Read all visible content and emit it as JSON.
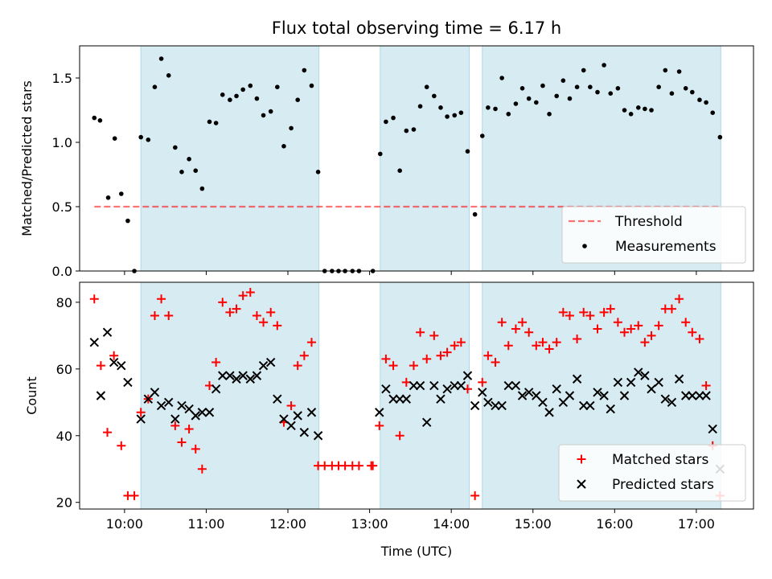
{
  "title": "Flux total observing time = 6.17 h",
  "colors": {
    "shade": "#add8e6",
    "threshold": "#ff0000",
    "measurements": "#000000",
    "matched": "#ff0000",
    "predicted": "#000000"
  },
  "chart_data": [
    {
      "type": "scatter",
      "ylabel": "Matched/Predicted stars",
      "xlim": [
        9.45,
        17.7
      ],
      "ylim": [
        0,
        1.75
      ],
      "yticks": [
        0,
        0.5,
        1,
        1.5
      ],
      "ytick_labels": [
        "0.0",
        "0.5",
        "1.0",
        "1.5"
      ],
      "shaded_intervals": [
        [
          10.2,
          12.38
        ],
        [
          13.13,
          14.22
        ],
        [
          14.38,
          17.3
        ]
      ],
      "threshold": {
        "name": "Threshold",
        "value": 0.5,
        "x_start": 9.63,
        "x_end": 17.3,
        "style": "dashed"
      },
      "legend": {
        "position": "lower right",
        "entries": [
          "Threshold",
          "Measurements"
        ]
      },
      "series": [
        {
          "name": "Measurements",
          "marker": "dot",
          "x": [
            9.63,
            9.7,
            9.8,
            9.88,
            9.96,
            10.04,
            10.12,
            10.2,
            10.29,
            10.37,
            10.45,
            10.54,
            10.62,
            10.7,
            10.79,
            10.87,
            10.95,
            11.04,
            11.12,
            11.2,
            11.29,
            11.37,
            11.45,
            11.54,
            11.62,
            11.7,
            11.79,
            11.87,
            11.95,
            12.04,
            12.12,
            12.2,
            12.29,
            12.37,
            12.45,
            12.54,
            12.62,
            12.7,
            12.79,
            12.87,
            13.04,
            13.13,
            13.2,
            13.29,
            13.37,
            13.45,
            13.54,
            13.62,
            13.7,
            13.79,
            13.87,
            13.95,
            14.04,
            14.12,
            14.2,
            14.29,
            14.38,
            14.45,
            14.54,
            14.62,
            14.7,
            14.79,
            14.87,
            14.95,
            15.04,
            15.12,
            15.2,
            15.29,
            15.37,
            15.45,
            15.54,
            15.62,
            15.7,
            15.79,
            15.87,
            15.95,
            16.04,
            16.12,
            16.2,
            16.29,
            16.37,
            16.45,
            16.54,
            16.62,
            16.7,
            16.79,
            16.87,
            16.95,
            17.04,
            17.12,
            17.2,
            17.29
          ],
          "y": [
            1.19,
            1.17,
            0.57,
            1.03,
            0.6,
            0.39,
            0.0,
            1.04,
            1.02,
            1.43,
            1.65,
            1.52,
            0.96,
            0.77,
            0.87,
            0.78,
            0.64,
            1.16,
            1.15,
            1.37,
            1.33,
            1.36,
            1.41,
            1.44,
            1.34,
            1.21,
            1.24,
            1.43,
            0.97,
            1.11,
            1.33,
            1.56,
            1.44,
            0.77,
            0.0,
            0.0,
            0.0,
            0.0,
            0.0,
            0.0,
            0.0,
            0.91,
            1.16,
            1.19,
            0.78,
            1.09,
            1.1,
            1.28,
            1.43,
            1.36,
            1.27,
            1.2,
            1.21,
            1.23,
            0.93,
            0.44,
            1.05,
            1.27,
            1.26,
            1.5,
            1.22,
            1.3,
            1.42,
            1.34,
            1.31,
            1.44,
            1.22,
            1.36,
            1.48,
            1.34,
            1.43,
            1.56,
            1.43,
            1.39,
            1.6,
            1.38,
            1.42,
            1.25,
            1.22,
            1.27,
            1.26,
            1.25,
            1.43,
            1.56,
            1.38,
            1.55,
            1.42,
            1.39,
            1.33,
            1.31,
            1.23,
            1.04
          ]
        }
      ]
    },
    {
      "type": "scatter",
      "xlabel": "Time (UTC)",
      "ylabel": "Count",
      "xlim": [
        9.45,
        17.7
      ],
      "ylim": [
        18,
        86
      ],
      "xticks": [
        10,
        11,
        12,
        13,
        14,
        15,
        16,
        17
      ],
      "xtick_labels": [
        "10:00",
        "11:00",
        "12:00",
        "13:00",
        "14:00",
        "15:00",
        "16:00",
        "17:00"
      ],
      "yticks": [
        20,
        40,
        60,
        80
      ],
      "ytick_labels": [
        "20",
        "40",
        "60",
        "80"
      ],
      "shaded_intervals": [
        [
          10.2,
          12.38
        ],
        [
          13.13,
          14.22
        ],
        [
          14.38,
          17.3
        ]
      ],
      "legend": {
        "position": "lower right",
        "entries": [
          "Matched stars",
          "Predicted stars"
        ]
      },
      "series": [
        {
          "name": "Matched stars",
          "marker": "plus",
          "x": [
            9.63,
            9.71,
            9.79,
            9.87,
            9.96,
            10.04,
            10.12,
            10.2,
            10.29,
            10.37,
            10.45,
            10.54,
            10.62,
            10.7,
            10.79,
            10.87,
            10.95,
            11.04,
            11.12,
            11.2,
            11.29,
            11.37,
            11.45,
            11.54,
            11.62,
            11.7,
            11.79,
            11.87,
            11.95,
            12.04,
            12.12,
            12.2,
            12.29,
            12.37,
            12.45,
            12.54,
            12.62,
            12.7,
            12.79,
            12.87,
            13.02,
            13.04,
            13.12,
            13.2,
            13.29,
            13.37,
            13.45,
            13.54,
            13.62,
            13.7,
            13.79,
            13.87,
            13.95,
            14.04,
            14.12,
            14.2,
            14.29,
            14.38,
            14.45,
            14.54,
            14.62,
            14.7,
            14.79,
            14.87,
            14.95,
            15.04,
            15.12,
            15.2,
            15.29,
            15.37,
            15.45,
            15.54,
            15.62,
            15.7,
            15.79,
            15.87,
            15.95,
            16.04,
            16.12,
            16.2,
            16.29,
            16.37,
            16.45,
            16.54,
            16.62,
            16.7,
            16.79,
            16.87,
            16.95,
            17.04,
            17.12,
            17.2,
            17.29
          ],
          "y": [
            81,
            61,
            41,
            64,
            37,
            22,
            22,
            47,
            51,
            76,
            81,
            76,
            43,
            38,
            42,
            36,
            30,
            55,
            62,
            80,
            77,
            78,
            82,
            83,
            76,
            74,
            77,
            73,
            44,
            49,
            61,
            64,
            68,
            31,
            31,
            31,
            31,
            31,
            31,
            31,
            31,
            31,
            43,
            63,
            61,
            40,
            56,
            61,
            71,
            63,
            70,
            64,
            65,
            67,
            68,
            54,
            22,
            56,
            64,
            62,
            74,
            67,
            72,
            74,
            71,
            67,
            68,
            66,
            68,
            77,
            76,
            69,
            77,
            76,
            72,
            77,
            78,
            74,
            71,
            72,
            73,
            68,
            70,
            73,
            78,
            78,
            81,
            74,
            71,
            69,
            55,
            37,
            22
          ]
        },
        {
          "name": "Predicted stars",
          "marker": "x",
          "x": [
            9.63,
            9.71,
            9.79,
            9.87,
            9.96,
            10.04,
            10.2,
            10.29,
            10.37,
            10.45,
            10.54,
            10.62,
            10.7,
            10.79,
            10.87,
            10.95,
            11.04,
            11.12,
            11.2,
            11.29,
            11.37,
            11.45,
            11.54,
            11.62,
            11.7,
            11.79,
            11.87,
            11.95,
            12.04,
            12.12,
            12.2,
            12.29,
            12.37,
            13.12,
            13.2,
            13.29,
            13.37,
            13.45,
            13.54,
            13.62,
            13.7,
            13.79,
            13.87,
            13.95,
            14.04,
            14.12,
            14.2,
            14.29,
            14.38,
            14.45,
            14.54,
            14.62,
            14.7,
            14.79,
            14.87,
            14.95,
            15.04,
            15.12,
            15.2,
            15.29,
            15.37,
            15.45,
            15.54,
            15.62,
            15.7,
            15.79,
            15.87,
            15.95,
            16.04,
            16.12,
            16.2,
            16.29,
            16.37,
            16.45,
            16.54,
            16.62,
            16.7,
            16.79,
            16.87,
            16.95,
            17.04,
            17.12,
            17.2,
            17.29
          ],
          "y": [
            68,
            52,
            71,
            62,
            61,
            56,
            45,
            51,
            53,
            49,
            50,
            45,
            49,
            48,
            46,
            47,
            47,
            54,
            58,
            58,
            57,
            58,
            57,
            58,
            61,
            62,
            51,
            45,
            43,
            46,
            41,
            47,
            40,
            47,
            54,
            51,
            51,
            51,
            55,
            55,
            44,
            55,
            51,
            54,
            55,
            55,
            58,
            49,
            53,
            50,
            49,
            49,
            55,
            55,
            52,
            53,
            52,
            50,
            47,
            54,
            50,
            52,
            57,
            49,
            49,
            53,
            52,
            48,
            56,
            52,
            56,
            59,
            58,
            54,
            56,
            51,
            50,
            57,
            52,
            52,
            52,
            52,
            42,
            30
          ]
        }
      ]
    }
  ]
}
